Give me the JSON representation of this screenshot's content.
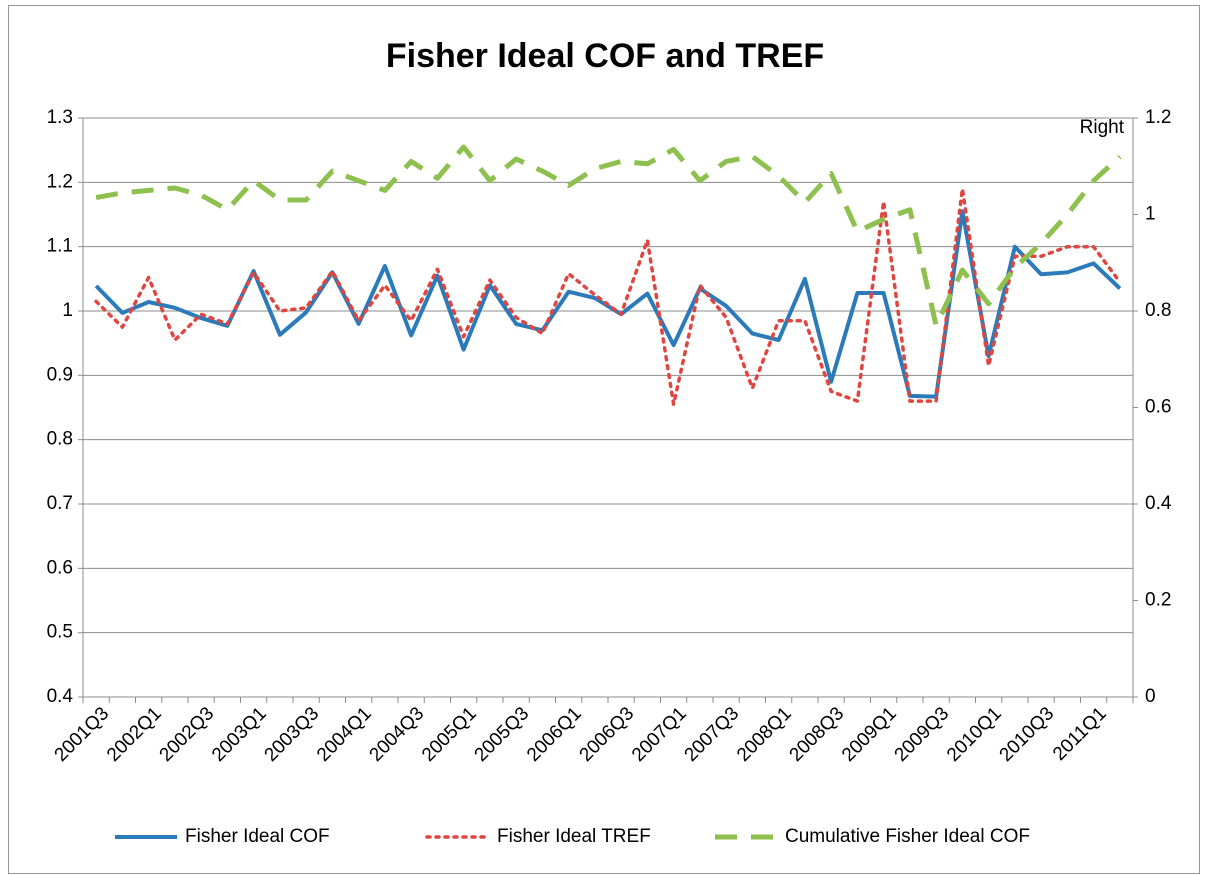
{
  "chart_data": {
    "type": "line",
    "title": "Fisher Ideal COF and TREF",
    "annotation": "Right",
    "categories": [
      "2001Q3",
      null,
      "2002Q1",
      null,
      "2002Q3",
      null,
      "2003Q1",
      null,
      "2003Q3",
      null,
      "2004Q1",
      null,
      "2004Q3",
      null,
      "2005Q1",
      null,
      "2005Q3",
      null,
      "2006Q1",
      null,
      "2006Q3",
      null,
      "2007Q1",
      null,
      "2007Q3",
      null,
      "2008Q1",
      null,
      "2008Q3",
      null,
      "2009Q1",
      null,
      "2009Q3",
      null,
      "2010Q1",
      null,
      "2010Q3",
      null,
      "2011Q1",
      null
    ],
    "series": [
      {
        "name": "Fisher Ideal COF",
        "color": "#2b7bba",
        "dash": "solid",
        "values": [
          1.039,
          0.997,
          1.014,
          1.005,
          0.989,
          0.977,
          1.062,
          0.963,
          0.998,
          1.06,
          0.98,
          1.07,
          0.962,
          1.055,
          0.94,
          1.04,
          0.98,
          0.97,
          1.03,
          1.02,
          0.995,
          1.027,
          0.947,
          1.035,
          1.008,
          0.965,
          0.955,
          1.05,
          0.89,
          1.028,
          1.028,
          0.868,
          0.867,
          1.155,
          0.93,
          1.1,
          1.057,
          1.06,
          1.074,
          1.035
        ]
      },
      {
        "name": "Fisher Ideal TREF",
        "color": "#e0453f",
        "dash": "dot",
        "values": [
          1.015,
          0.975,
          1.052,
          0.955,
          0.995,
          0.98,
          1.06,
          1.0,
          1.005,
          1.062,
          0.985,
          1.04,
          0.985,
          1.065,
          0.96,
          1.048,
          0.99,
          0.965,
          1.058,
          1.025,
          0.995,
          1.11,
          0.855,
          1.04,
          0.99,
          0.88,
          0.985,
          0.985,
          0.875,
          0.86,
          1.17,
          0.86,
          0.86,
          1.19,
          0.915,
          1.085,
          1.085,
          1.1,
          1.1,
          1.045
        ]
      },
      {
        "name": "Cumulative Fisher Ideal COF",
        "color": "#8dc04e",
        "dash": "dash",
        "axis": "y2",
        "values": [
          1.035,
          1.045,
          1.05,
          1.055,
          1.04,
          1.01,
          1.07,
          1.03,
          1.03,
          1.09,
          1.07,
          1.05,
          1.11,
          1.075,
          1.14,
          1.07,
          1.115,
          1.09,
          1.06,
          1.095,
          1.11,
          1.105,
          1.135,
          1.07,
          1.11,
          1.12,
          1.08,
          1.025,
          1.085,
          0.965,
          0.99,
          1.01,
          0.77,
          0.885,
          0.815,
          0.89,
          0.94,
          1.0,
          1.07,
          1.12
        ]
      }
    ],
    "ylim": [
      0.4,
      1.3
    ],
    "yticks": [
      0.4,
      0.5,
      0.6,
      0.7,
      0.8,
      0.9,
      1,
      1.1,
      1.2,
      1.3
    ],
    "y2lim": [
      0,
      1.2
    ],
    "y2ticks": [
      0,
      0.2,
      0.4,
      0.6,
      0.8,
      1,
      1.2
    ],
    "grid": true,
    "legend": "bottom"
  }
}
